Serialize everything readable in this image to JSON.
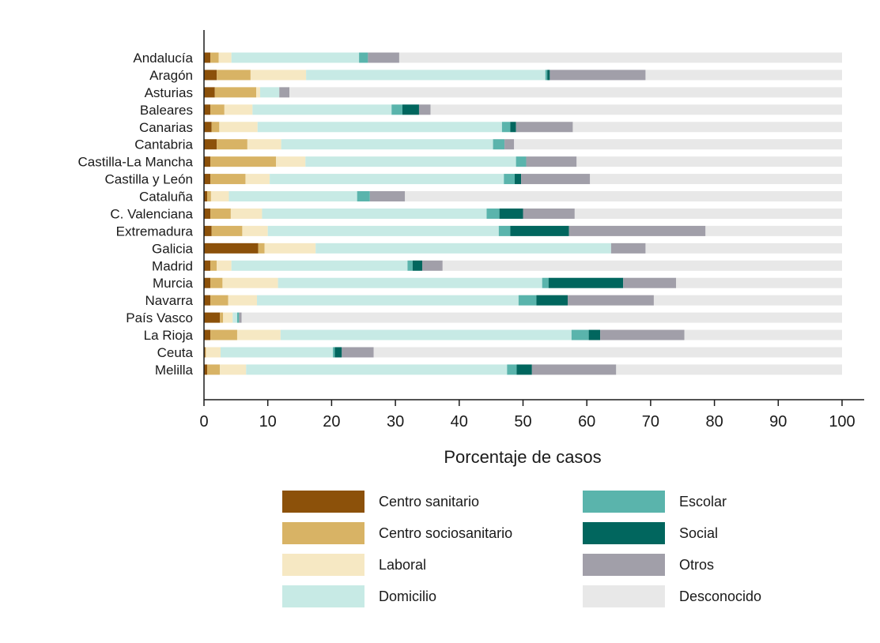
{
  "chart_data": {
    "type": "bar",
    "orientation": "horizontal",
    "stacked": true,
    "title": "",
    "xlabel": "Porcentaje de casos",
    "ylabel": "",
    "xlim": [
      0,
      100
    ],
    "xticks": [
      0,
      10,
      20,
      30,
      40,
      50,
      60,
      70,
      80,
      90,
      100
    ],
    "grid": false,
    "legend_placement": "bottom",
    "categories": [
      "Andalucía",
      "Aragón",
      "Asturias",
      "Baleares",
      "Canarias",
      "Cantabria",
      "Castilla-La Mancha",
      "Castilla y León",
      "Cataluña",
      "C. Valenciana",
      "Extremadura",
      "Galicia",
      "Madrid",
      "Murcia",
      "Navarra",
      "País Vasco",
      "La Rioja",
      "Ceuta",
      "Melilla"
    ],
    "series": [
      {
        "name": "Centro sanitario",
        "color": "#8c510a",
        "values": [
          1.0,
          2.0,
          1.7,
          1.0,
          1.2,
          2.0,
          1.0,
          1.0,
          0.5,
          1.0,
          1.2,
          8.5,
          1.0,
          1.0,
          1.0,
          2.5,
          1.0,
          0.2,
          0.5
        ]
      },
      {
        "name": "Centro sociosanitario",
        "color": "#d8b365",
        "values": [
          1.3,
          5.3,
          6.5,
          2.2,
          1.2,
          4.8,
          10.3,
          5.5,
          0.6,
          3.2,
          4.8,
          1.0,
          1.0,
          1.9,
          2.8,
          0.5,
          4.2,
          0.1,
          2.0
        ]
      },
      {
        "name": "Laboral",
        "color": "#f6e8c3",
        "values": [
          2.0,
          8.7,
          0.6,
          4.4,
          6.0,
          5.3,
          4.6,
          3.8,
          2.8,
          4.9,
          4.0,
          8.0,
          2.3,
          8.7,
          4.5,
          1.5,
          6.8,
          2.3,
          4.1
        ]
      },
      {
        "name": "Domicilio",
        "color": "#c7eae5",
        "values": [
          20.0,
          37.5,
          3.0,
          21.8,
          38.3,
          33.2,
          33.0,
          36.7,
          20.1,
          35.2,
          36.2,
          46.3,
          27.6,
          41.4,
          41.0,
          0.7,
          45.6,
          17.6,
          40.9
        ]
      },
      {
        "name": "Escolar",
        "color": "#5ab4ac",
        "values": [
          1.4,
          0.3,
          0.0,
          1.7,
          1.3,
          1.8,
          1.6,
          1.7,
          2.0,
          2.0,
          1.8,
          0.0,
          0.8,
          1.0,
          2.8,
          0.3,
          2.7,
          0.3,
          1.5
        ]
      },
      {
        "name": "Social",
        "color": "#01665e",
        "values": [
          0.0,
          0.4,
          0.0,
          2.6,
          0.9,
          0.0,
          0.0,
          1.0,
          0.0,
          3.7,
          9.2,
          0.0,
          1.5,
          11.7,
          4.9,
          0.0,
          1.8,
          1.1,
          2.4
        ]
      },
      {
        "name": "Otros",
        "color": "#a19fa9",
        "values": [
          4.9,
          15.0,
          1.6,
          1.8,
          8.9,
          1.5,
          7.9,
          10.8,
          5.5,
          8.1,
          21.4,
          5.4,
          3.2,
          8.3,
          13.5,
          0.4,
          13.2,
          5.0,
          13.2
        ]
      },
      {
        "name": "Desconocido",
        "color": "#e8e8e8",
        "values": [
          69.4,
          30.8,
          86.6,
          64.5,
          42.2,
          51.4,
          41.6,
          39.5,
          68.5,
          41.9,
          21.4,
          30.8,
          62.6,
          26.0,
          29.5,
          94.1,
          24.7,
          73.4,
          35.4
        ]
      }
    ]
  }
}
